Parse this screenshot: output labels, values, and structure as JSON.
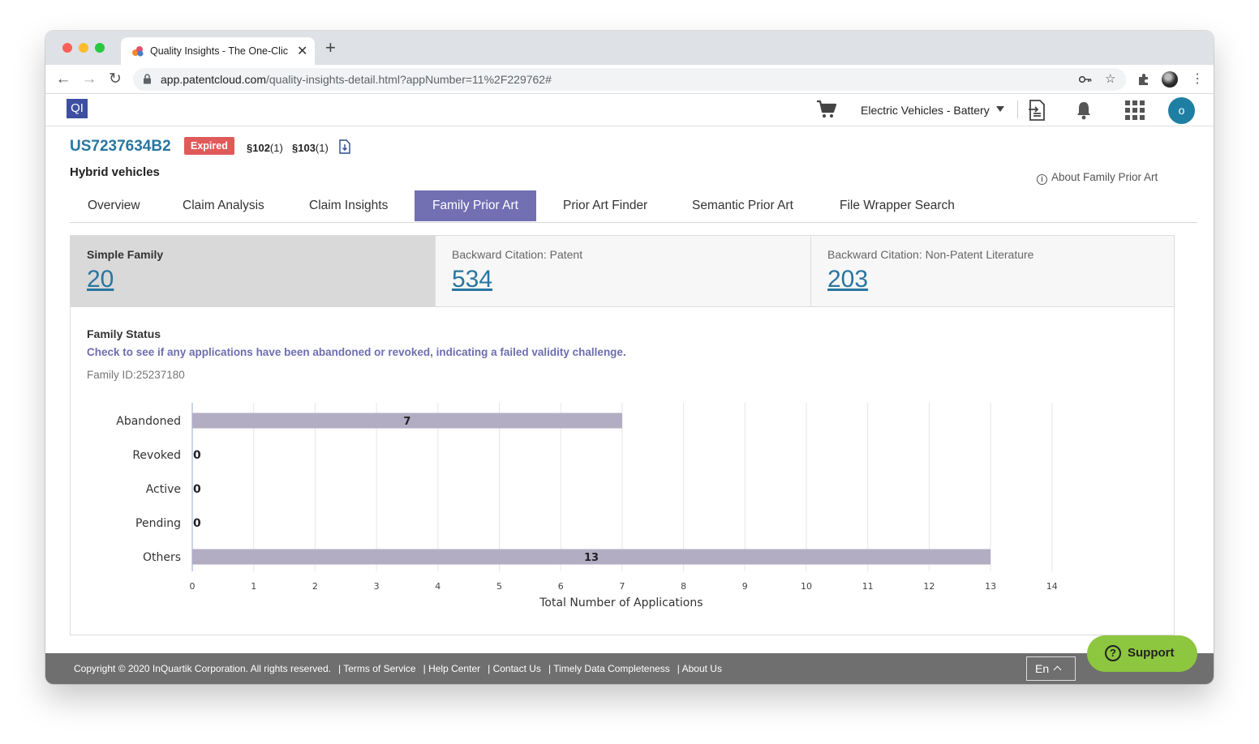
{
  "browser": {
    "tab_title": "Quality Insights - The One-Clic",
    "url_host": "app.patentcloud.com",
    "url_path": "/quality-insights-detail.html?appNumber=11%2F229762#"
  },
  "header": {
    "logo": "QI",
    "project": "Electric Vehicles - Battery",
    "avatar_initial": "o"
  },
  "patent": {
    "number": "US7237634B2",
    "status": "Expired",
    "sec102_label": "§102",
    "sec102_count": "(1)",
    "sec103_label": "§103",
    "sec103_count": "(1)",
    "title": "Hybrid vehicles",
    "about_link": "About Family Prior Art"
  },
  "tabs": [
    {
      "label": "Overview"
    },
    {
      "label": "Claim Analysis"
    },
    {
      "label": "Claim Insights"
    },
    {
      "label": "Family Prior Art"
    },
    {
      "label": "Prior Art Finder"
    },
    {
      "label": "Semantic Prior Art"
    },
    {
      "label": "File Wrapper Search"
    }
  ],
  "active_tab": "Family Prior Art",
  "stats": [
    {
      "label": "Simple Family",
      "value": "20"
    },
    {
      "label": "Backward Citation: Patent",
      "value": "534"
    },
    {
      "label": "Backward Citation: Non-Patent Literature",
      "value": "203"
    }
  ],
  "family_status": {
    "title": "Family Status",
    "hint": "Check to see if any applications have been abandoned or revoked, indicating a failed validity challenge.",
    "family_id": "Family ID:25237180"
  },
  "chart_data": {
    "type": "bar",
    "orientation": "horizontal",
    "categories": [
      "Abandoned",
      "Revoked",
      "Active",
      "Pending",
      "Others"
    ],
    "values": [
      7,
      0,
      0,
      0,
      13
    ],
    "xlabel": "Total Number of Applications",
    "xlim": [
      0,
      14
    ],
    "xticks": [
      0,
      1,
      2,
      3,
      4,
      5,
      6,
      7,
      8,
      9,
      10,
      11,
      12,
      13,
      14
    ],
    "bar_color": "#b3adc4",
    "grid": true
  },
  "support": {
    "label": "Support"
  },
  "footer": {
    "copyright": "Copyright © 2020 InQuartik Corporation. All rights reserved.",
    "links": [
      "Terms of Service",
      "Help Center",
      "Contact Us",
      "Timely Data Completeness",
      "About Us"
    ],
    "language": "En"
  },
  "colors": {
    "accent": "#7270b3",
    "link": "#2876a0",
    "expired_badge": "#e05a5a",
    "support": "#8dc63f"
  }
}
